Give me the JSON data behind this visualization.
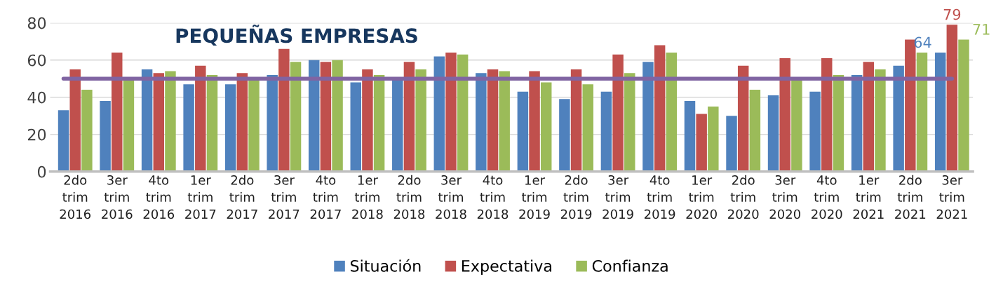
{
  "chart_data": {
    "type": "bar",
    "title": "PEQUEÑAS EMPRESAS",
    "categories": [
      "2do\ntrim\n2016",
      "3er\ntrim\n2016",
      "4to\ntrim\n2016",
      "1er\ntrim\n2017",
      "2do\ntrim\n2017",
      "3er\ntrim\n2017",
      "4to\ntrim\n2017",
      "1er\ntrim\n2018",
      "2do\ntrim\n2018",
      "3er\ntrim\n2018",
      "4to\ntrim\n2018",
      "1er\ntrim\n2019",
      "2do\ntrim\n2019",
      "3er\ntrim\n2019",
      "4to\ntrim\n2019",
      "1er\ntrim\n2020",
      "2do\ntrim\n2020",
      "3er\ntrim\n2020",
      "4to\ntrim\n2020",
      "1er\ntrim\n2021",
      "2do\ntrim\n2021",
      "3er\ntrim\n2021"
    ],
    "series": [
      {
        "name": "Situación",
        "color": "#4f81bd",
        "values": [
          33,
          38,
          55,
          47,
          47,
          52,
          60,
          48,
          50,
          62,
          53,
          43,
          39,
          43,
          59,
          38,
          30,
          41,
          43,
          52,
          57,
          64
        ],
        "value_labels": [
          null,
          null,
          null,
          null,
          null,
          null,
          null,
          null,
          null,
          null,
          null,
          null,
          null,
          null,
          null,
          null,
          null,
          null,
          null,
          null,
          null,
          "64"
        ]
      },
      {
        "name": "Expectativa",
        "color": "#c0504d",
        "values": [
          55,
          64,
          53,
          57,
          53,
          66,
          59,
          55,
          59,
          64,
          55,
          54,
          55,
          63,
          68,
          31,
          57,
          61,
          61,
          59,
          71,
          79
        ],
        "value_labels": [
          null,
          null,
          null,
          null,
          null,
          null,
          null,
          null,
          null,
          null,
          null,
          null,
          null,
          null,
          null,
          null,
          null,
          null,
          null,
          null,
          null,
          "79"
        ]
      },
      {
        "name": "Confianza",
        "color": "#9bbb59",
        "values": [
          44,
          50,
          54,
          52,
          50,
          59,
          60,
          52,
          55,
          63,
          54,
          48,
          47,
          53,
          64,
          35,
          44,
          50,
          52,
          55,
          64,
          71
        ],
        "value_labels": [
          null,
          null,
          null,
          null,
          null,
          null,
          null,
          null,
          null,
          null,
          null,
          null,
          null,
          null,
          null,
          null,
          null,
          null,
          null,
          null,
          null,
          "71"
        ]
      }
    ],
    "ylim": [
      0,
      80
    ],
    "yticks": [
      0,
      20,
      40,
      60,
      80
    ],
    "grid": "y",
    "legend": "bottom",
    "ref_lines": [
      {
        "axis": "y",
        "value": 50,
        "color": "#8064a2"
      }
    ]
  }
}
